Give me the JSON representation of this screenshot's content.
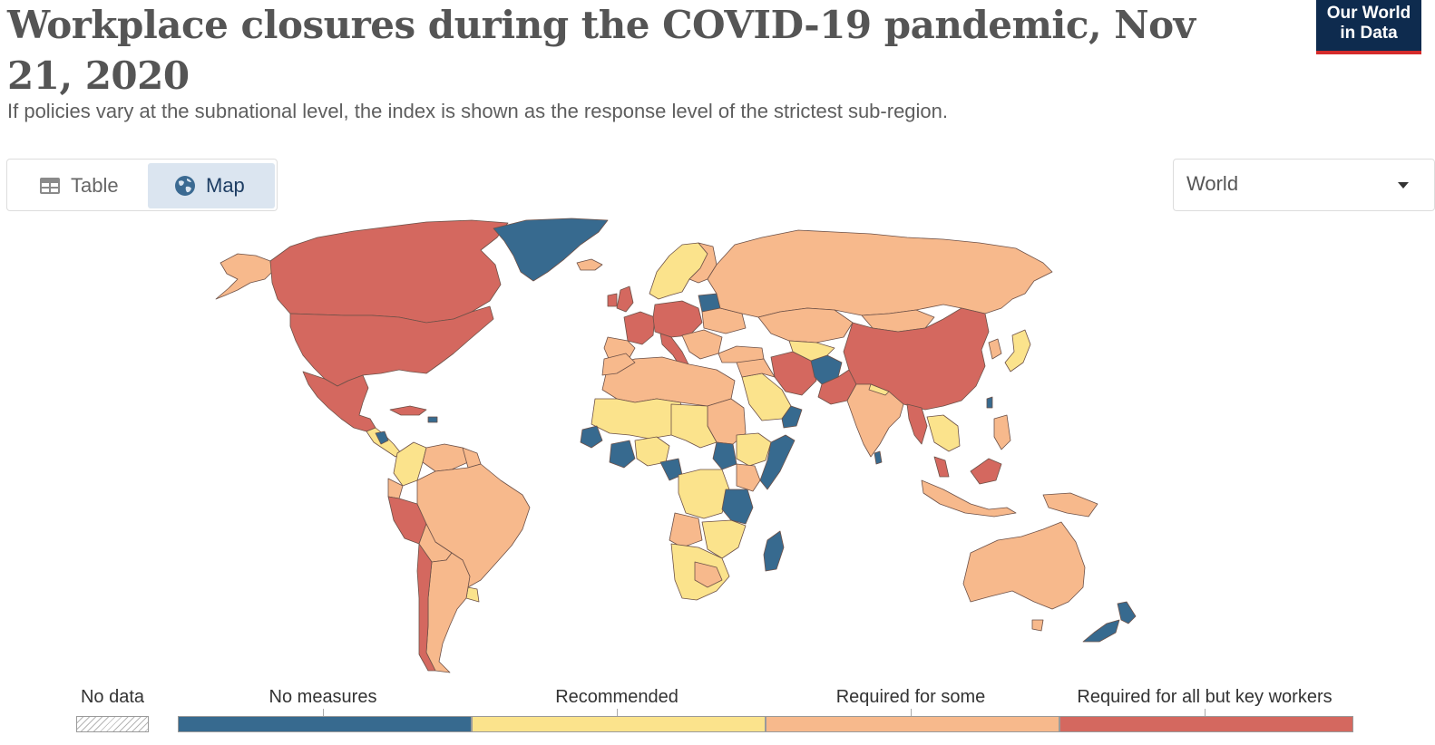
{
  "header": {
    "title": "Workplace closures during the COVID-19 pandemic, Nov 21, 2020",
    "subtitle": "If policies vary at the subnational level, the index is shown as the response level of the strictest sub-region."
  },
  "logo": {
    "line1": "Our World",
    "line2": "in Data"
  },
  "tabs": [
    {
      "label": "Table",
      "icon": "table-icon",
      "selected": false
    },
    {
      "label": "Map",
      "icon": "globe-icon",
      "selected": true
    }
  ],
  "region_select": {
    "value": "World"
  },
  "legend": {
    "no_data_label": "No data",
    "categories": [
      {
        "label": "No measures",
        "color": "#376a8f"
      },
      {
        "label": "Recommended",
        "color": "#fbe38c"
      },
      {
        "label": "Required for some",
        "color": "#f7b98c"
      },
      {
        "label": "Required for all but key workers",
        "color": "#d4685f"
      }
    ]
  },
  "colors": {
    "no_measures": "#376a8f",
    "recommended": "#fbe38c",
    "required_some": "#f7b98c",
    "required_all": "#d4685f",
    "ocean": "#ffffff",
    "border": "#7a5a50"
  }
}
